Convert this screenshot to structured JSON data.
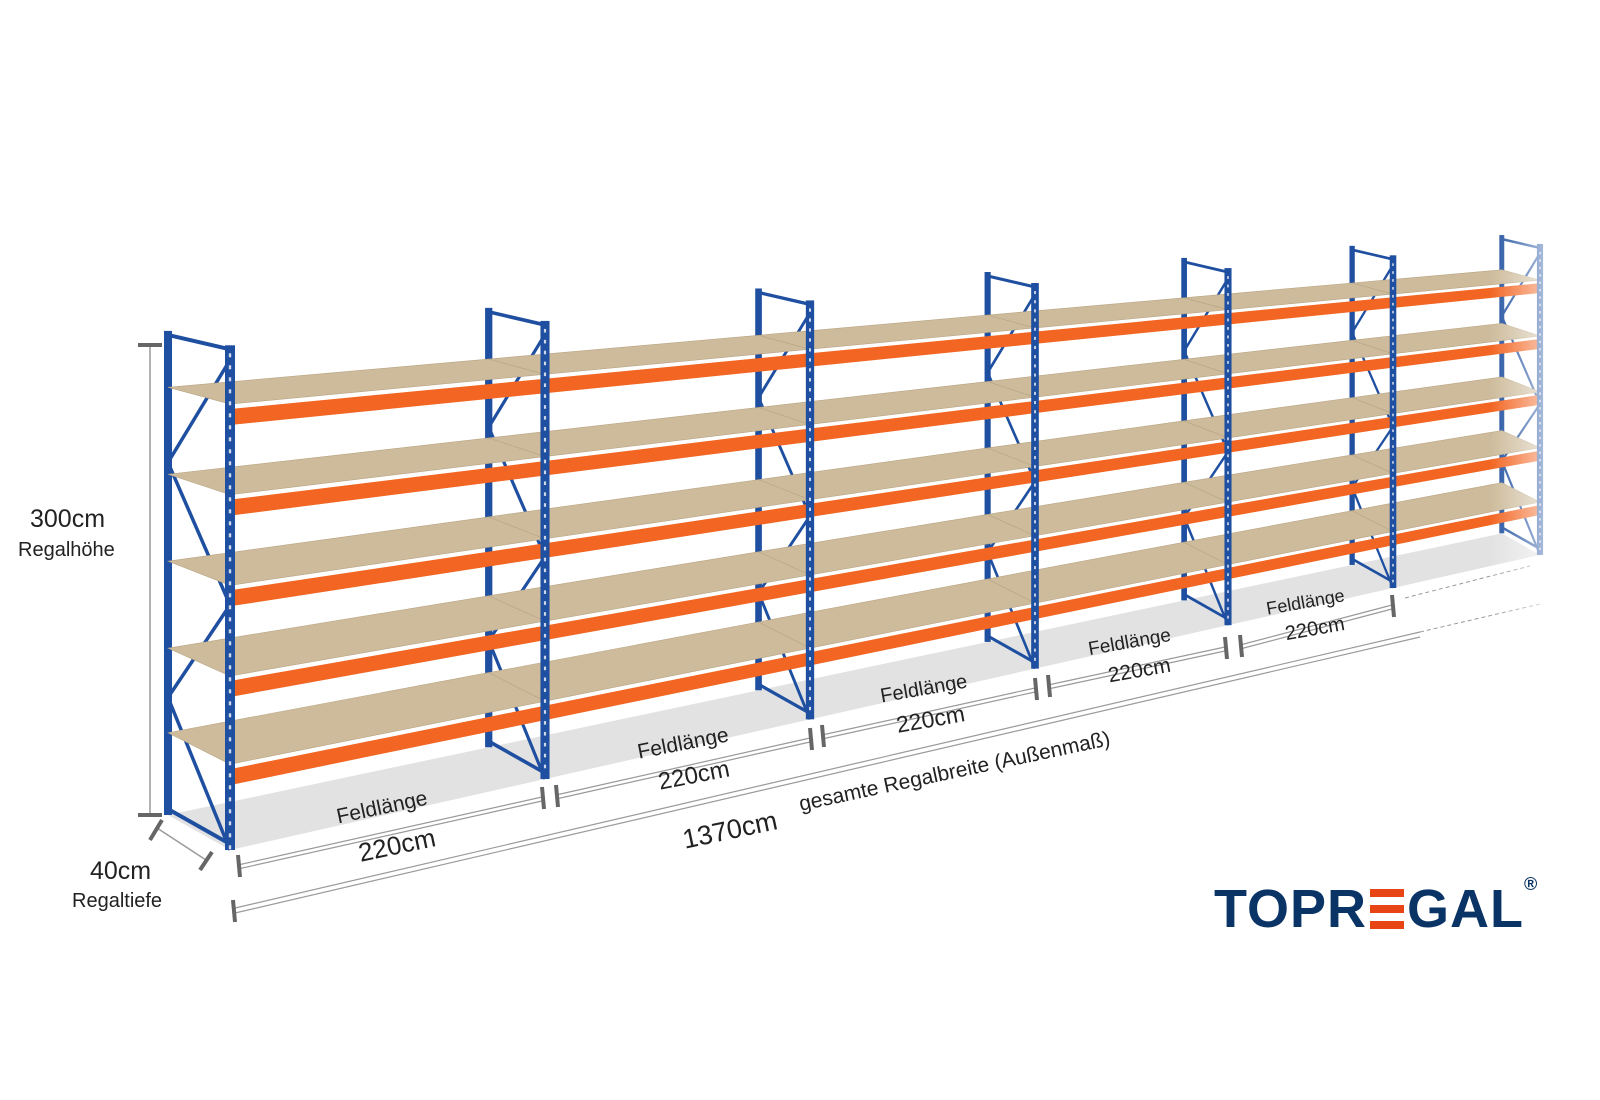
{
  "colors": {
    "upright": "#1f4fa0",
    "beam": "#f26522",
    "board": "#cdbb9b",
    "logo_text": "#0a3466",
    "logo_accent": "#e84516",
    "dimension_line": "#9a9a9a"
  },
  "height": {
    "value": "300cm",
    "label": "Regalhöhe"
  },
  "depth": {
    "value": "40cm",
    "label": "Regaltiefe"
  },
  "fields": [
    {
      "label": "Feldlänge",
      "value": "220cm"
    },
    {
      "label": "Feldlänge",
      "value": "220cm"
    },
    {
      "label": "Feldlänge",
      "value": "220cm"
    },
    {
      "label": "Feldlänge",
      "value": "220cm"
    },
    {
      "label": "Feldlänge",
      "value": "220cm"
    }
  ],
  "total": {
    "value": "1370cm",
    "label": "gesamte Regalbreite (Außenmaß)"
  },
  "logo": {
    "part1": "TOPR",
    "part2": "GAL",
    "registered": "®"
  },
  "shelf_levels": 5
}
